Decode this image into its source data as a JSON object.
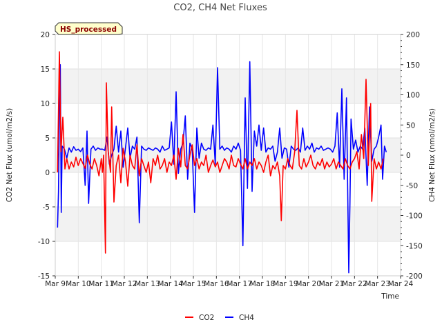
{
  "chart_data": {
    "type": "line",
    "title": "CO2, CH4 Net Fluxes",
    "badge": "HS_processed",
    "xlabel": "Time",
    "ylabel_left": "CO2 Net Flux (umol/m2/s)",
    "ylabel_right": "CH4 Net Flux (nmol/m2/s)",
    "x_range": [
      9,
      24
    ],
    "x_ticks": [
      {
        "value": 9,
        "label": "Mar 9"
      },
      {
        "value": 10,
        "label": "Mar 10"
      },
      {
        "value": 11,
        "label": "Mar 11"
      },
      {
        "value": 12,
        "label": "Mar 12"
      },
      {
        "value": 13,
        "label": "Mar 13"
      },
      {
        "value": 14,
        "label": "Mar 14"
      },
      {
        "value": 15,
        "label": "Mar 15"
      },
      {
        "value": 16,
        "label": "Mar 16"
      },
      {
        "value": 17,
        "label": "Mar 17"
      },
      {
        "value": 18,
        "label": "Mar 18"
      },
      {
        "value": 19,
        "label": "Mar 19"
      },
      {
        "value": 20,
        "label": "Mar 20"
      },
      {
        "value": 21,
        "label": "Mar 21"
      },
      {
        "value": 22,
        "label": "Mar 22"
      },
      {
        "value": 23,
        "label": "Mar 23"
      },
      {
        "value": 24,
        "label": "Mar 24"
      }
    ],
    "ylim_left": [
      -15,
      20
    ],
    "y_ticks_left": [
      -15,
      -10,
      -5,
      0,
      5,
      10,
      15,
      20
    ],
    "ylim_right": [
      -200,
      200
    ],
    "y_ticks_right": [
      -200,
      -150,
      -100,
      -50,
      0,
      50,
      100,
      150,
      200
    ],
    "band_color": "#f2f2f2",
    "series": [
      {
        "name": "CO2",
        "axis": "left",
        "color": "#ff0000",
        "points": [
          [
            9.1,
            0
          ],
          [
            9.18,
            17.5
          ],
          [
            9.25,
            3
          ],
          [
            9.33,
            8
          ],
          [
            9.42,
            0.5
          ],
          [
            9.5,
            2
          ],
          [
            9.6,
            0.5
          ],
          [
            9.7,
            1.5
          ],
          [
            9.8,
            0.8
          ],
          [
            9.9,
            2.2
          ],
          [
            10,
            1
          ],
          [
            10.1,
            2
          ],
          [
            10.2,
            1.3
          ],
          [
            10.3,
            0.6
          ],
          [
            10.4,
            2.5
          ],
          [
            10.5,
            1.2
          ],
          [
            10.6,
            0.5
          ],
          [
            10.7,
            2
          ],
          [
            10.8,
            1
          ],
          [
            10.9,
            -0.5
          ],
          [
            11,
            2
          ],
          [
            11.05,
            0
          ],
          [
            11.1,
            2.5
          ],
          [
            11.18,
            -11.7
          ],
          [
            11.22,
            13
          ],
          [
            11.3,
            3
          ],
          [
            11.4,
            0
          ],
          [
            11.45,
            9.5
          ],
          [
            11.55,
            -4.3
          ],
          [
            11.65,
            1
          ],
          [
            11.75,
            2.5
          ],
          [
            11.85,
            -1.5
          ],
          [
            11.95,
            3.5
          ],
          [
            12.05,
            1.5
          ],
          [
            12.15,
            -2
          ],
          [
            12.25,
            2.5
          ],
          [
            12.35,
            1
          ],
          [
            12.45,
            0.5
          ],
          [
            12.55,
            4
          ],
          [
            12.65,
            -0.5
          ],
          [
            12.75,
            2
          ],
          [
            12.85,
            1
          ],
          [
            12.95,
            0
          ],
          [
            13.05,
            1.5
          ],
          [
            13.15,
            -1.5
          ],
          [
            13.25,
            2
          ],
          [
            13.35,
            1
          ],
          [
            13.45,
            2.5
          ],
          [
            13.55,
            0.5
          ],
          [
            13.65,
            1
          ],
          [
            13.75,
            2
          ],
          [
            13.85,
            0
          ],
          [
            13.95,
            1.5
          ],
          [
            14.05,
            1
          ],
          [
            14.15,
            2.5
          ],
          [
            14.25,
            -1
          ],
          [
            14.35,
            3.5
          ],
          [
            14.45,
            0.8
          ],
          [
            14.55,
            5.5
          ],
          [
            14.65,
            1
          ],
          [
            14.75,
            0.5
          ],
          [
            14.85,
            2.5
          ],
          [
            14.95,
            4
          ],
          [
            15.05,
            1
          ],
          [
            15.15,
            2
          ],
          [
            15.25,
            0.5
          ],
          [
            15.35,
            1.5
          ],
          [
            15.45,
            1
          ],
          [
            15.55,
            2.5
          ],
          [
            15.65,
            0
          ],
          [
            15.75,
            1
          ],
          [
            15.85,
            1.8
          ],
          [
            15.95,
            0.8
          ],
          [
            16.05,
            1.5
          ],
          [
            16.15,
            0
          ],
          [
            16.25,
            1
          ],
          [
            16.35,
            2
          ],
          [
            16.45,
            1.5
          ],
          [
            16.55,
            0.5
          ],
          [
            16.65,
            2.5
          ],
          [
            16.75,
            1
          ],
          [
            16.85,
            0.8
          ],
          [
            16.95,
            2
          ],
          [
            17.05,
            1.2
          ],
          [
            17.15,
            0.5
          ],
          [
            17.25,
            2
          ],
          [
            17.35,
            0.5
          ],
          [
            17.45,
            1.5
          ],
          [
            17.55,
            1
          ],
          [
            17.65,
            2
          ],
          [
            17.75,
            0.5
          ],
          [
            17.85,
            1.5
          ],
          [
            17.95,
            1
          ],
          [
            18.05,
            0
          ],
          [
            18.15,
            1.5
          ],
          [
            18.25,
            2.5
          ],
          [
            18.35,
            -0.5
          ],
          [
            18.45,
            1
          ],
          [
            18.55,
            0.5
          ],
          [
            18.65,
            1.5
          ],
          [
            18.75,
            -0.5
          ],
          [
            18.82,
            -7
          ],
          [
            18.9,
            1
          ],
          [
            19,
            0.5
          ],
          [
            19.1,
            2
          ],
          [
            19.2,
            1
          ],
          [
            19.3,
            0.5
          ],
          [
            19.4,
            3
          ],
          [
            19.5,
            9
          ],
          [
            19.6,
            1
          ],
          [
            19.7,
            0.5
          ],
          [
            19.8,
            2
          ],
          [
            19.9,
            0.8
          ],
          [
            20,
            1.5
          ],
          [
            20.1,
            2.5
          ],
          [
            20.2,
            1
          ],
          [
            20.3,
            0.5
          ],
          [
            20.4,
            1.5
          ],
          [
            20.5,
            1
          ],
          [
            20.6,
            2
          ],
          [
            20.7,
            0.5
          ],
          [
            20.8,
            1.5
          ],
          [
            20.9,
            0.8
          ],
          [
            21,
            1.2
          ],
          [
            21.1,
            2
          ],
          [
            21.2,
            0.5
          ],
          [
            21.3,
            1.5
          ],
          [
            21.4,
            1
          ],
          [
            21.5,
            0.5
          ],
          [
            21.6,
            2
          ],
          [
            21.7,
            1
          ],
          [
            21.8,
            0.5
          ],
          [
            21.9,
            1.5
          ],
          [
            22,
            2
          ],
          [
            22.1,
            3
          ],
          [
            22.2,
            0.5
          ],
          [
            22.3,
            5.5
          ],
          [
            22.4,
            2
          ],
          [
            22.5,
            13.5
          ],
          [
            22.6,
            1
          ],
          [
            22.7,
            10
          ],
          [
            22.75,
            -4.2
          ],
          [
            22.85,
            2
          ],
          [
            22.95,
            0.5
          ],
          [
            23.05,
            1.5
          ],
          [
            23.15,
            0.5
          ],
          [
            23.25,
            2
          ]
        ]
      },
      {
        "name": "CH4",
        "axis": "right",
        "color": "#0000ff",
        "points": [
          [
            9.1,
            -120
          ],
          [
            9.14,
            -60
          ],
          [
            9.18,
            70
          ],
          [
            9.22,
            150
          ],
          [
            9.26,
            -95
          ],
          [
            9.3,
            15
          ],
          [
            9.4,
            10
          ],
          [
            9.5,
            -5
          ],
          [
            9.6,
            12
          ],
          [
            9.7,
            5
          ],
          [
            9.8,
            14
          ],
          [
            9.9,
            8
          ],
          [
            10,
            10
          ],
          [
            10.1,
            6
          ],
          [
            10.2,
            12
          ],
          [
            10.3,
            -50
          ],
          [
            10.38,
            40
          ],
          [
            10.45,
            -80
          ],
          [
            10.55,
            10
          ],
          [
            10.65,
            15
          ],
          [
            10.75,
            8
          ],
          [
            10.85,
            12
          ],
          [
            10.95,
            10
          ],
          [
            11.05,
            10
          ],
          [
            11.15,
            8
          ],
          [
            11.25,
            30
          ],
          [
            11.35,
            -15
          ],
          [
            11.45,
            0
          ],
          [
            11.55,
            10
          ],
          [
            11.65,
            48
          ],
          [
            11.75,
            5
          ],
          [
            11.85,
            40
          ],
          [
            11.95,
            -20
          ],
          [
            12.05,
            12
          ],
          [
            12.15,
            45
          ],
          [
            12.25,
            -5
          ],
          [
            12.35,
            15
          ],
          [
            12.45,
            10
          ],
          [
            12.55,
            30
          ],
          [
            12.65,
            -112
          ],
          [
            12.75,
            15
          ],
          [
            12.85,
            10
          ],
          [
            12.95,
            8
          ],
          [
            13.05,
            12
          ],
          [
            13.15,
            10
          ],
          [
            13.25,
            8
          ],
          [
            13.35,
            12
          ],
          [
            13.45,
            10
          ],
          [
            13.55,
            5
          ],
          [
            13.65,
            15
          ],
          [
            13.75,
            8
          ],
          [
            13.85,
            10
          ],
          [
            13.95,
            12
          ],
          [
            14.05,
            55
          ],
          [
            14.15,
            -15
          ],
          [
            14.25,
            105
          ],
          [
            14.35,
            -30
          ],
          [
            14.45,
            10
          ],
          [
            14.55,
            20
          ],
          [
            14.65,
            65
          ],
          [
            14.75,
            -40
          ],
          [
            14.85,
            20
          ],
          [
            14.95,
            10
          ],
          [
            15.05,
            -95
          ],
          [
            15.15,
            45
          ],
          [
            15.25,
            -5
          ],
          [
            15.35,
            20
          ],
          [
            15.45,
            10
          ],
          [
            15.55,
            8
          ],
          [
            15.65,
            12
          ],
          [
            15.75,
            10
          ],
          [
            15.85,
            50
          ],
          [
            15.95,
            -15
          ],
          [
            16.05,
            145
          ],
          [
            16.15,
            10
          ],
          [
            16.25,
            15
          ],
          [
            16.35,
            8
          ],
          [
            16.45,
            12
          ],
          [
            16.55,
            10
          ],
          [
            16.65,
            5
          ],
          [
            16.75,
            15
          ],
          [
            16.85,
            10
          ],
          [
            16.95,
            20
          ],
          [
            17.05,
            8
          ],
          [
            17.15,
            -150
          ],
          [
            17.25,
            95
          ],
          [
            17.35,
            -55
          ],
          [
            17.45,
            155
          ],
          [
            17.55,
            -60
          ],
          [
            17.65,
            40
          ],
          [
            17.75,
            15
          ],
          [
            17.85,
            50
          ],
          [
            17.95,
            8
          ],
          [
            18.05,
            45
          ],
          [
            18.15,
            5
          ],
          [
            18.25,
            12
          ],
          [
            18.35,
            10
          ],
          [
            18.45,
            15
          ],
          [
            18.55,
            -10
          ],
          [
            18.65,
            5
          ],
          [
            18.75,
            45
          ],
          [
            18.85,
            -5
          ],
          [
            18.95,
            12
          ],
          [
            19.05,
            10
          ],
          [
            19.15,
            -20
          ],
          [
            19.25,
            15
          ],
          [
            19.35,
            10
          ],
          [
            19.45,
            8
          ],
          [
            19.55,
            12
          ],
          [
            19.65,
            5
          ],
          [
            19.75,
            45
          ],
          [
            19.85,
            8
          ],
          [
            19.95,
            15
          ],
          [
            20.05,
            10
          ],
          [
            20.15,
            20
          ],
          [
            20.25,
            5
          ],
          [
            20.35,
            12
          ],
          [
            20.45,
            10
          ],
          [
            20.55,
            15
          ],
          [
            20.65,
            8
          ],
          [
            20.75,
            10
          ],
          [
            20.85,
            12
          ],
          [
            20.95,
            10
          ],
          [
            21.05,
            5
          ],
          [
            21.15,
            15
          ],
          [
            21.25,
            70
          ],
          [
            21.35,
            -20
          ],
          [
            21.45,
            110
          ],
          [
            21.55,
            -40
          ],
          [
            21.65,
            95
          ],
          [
            21.75,
            -195
          ],
          [
            21.8,
            -80
          ],
          [
            21.85,
            60
          ],
          [
            21.95,
            10
          ],
          [
            22.05,
            25
          ],
          [
            22.15,
            5
          ],
          [
            22.25,
            15
          ],
          [
            22.35,
            10
          ],
          [
            22.45,
            45
          ],
          [
            22.55,
            -50
          ],
          [
            22.65,
            80
          ],
          [
            22.75,
            -10
          ],
          [
            22.85,
            10
          ],
          [
            22.95,
            15
          ],
          [
            23.05,
            30
          ],
          [
            23.15,
            50
          ],
          [
            23.22,
            -40
          ],
          [
            23.3,
            15
          ],
          [
            23.38,
            5
          ]
        ]
      }
    ],
    "legend": {
      "position": "bottom-center",
      "items": [
        "CO2",
        "CH4"
      ]
    }
  }
}
